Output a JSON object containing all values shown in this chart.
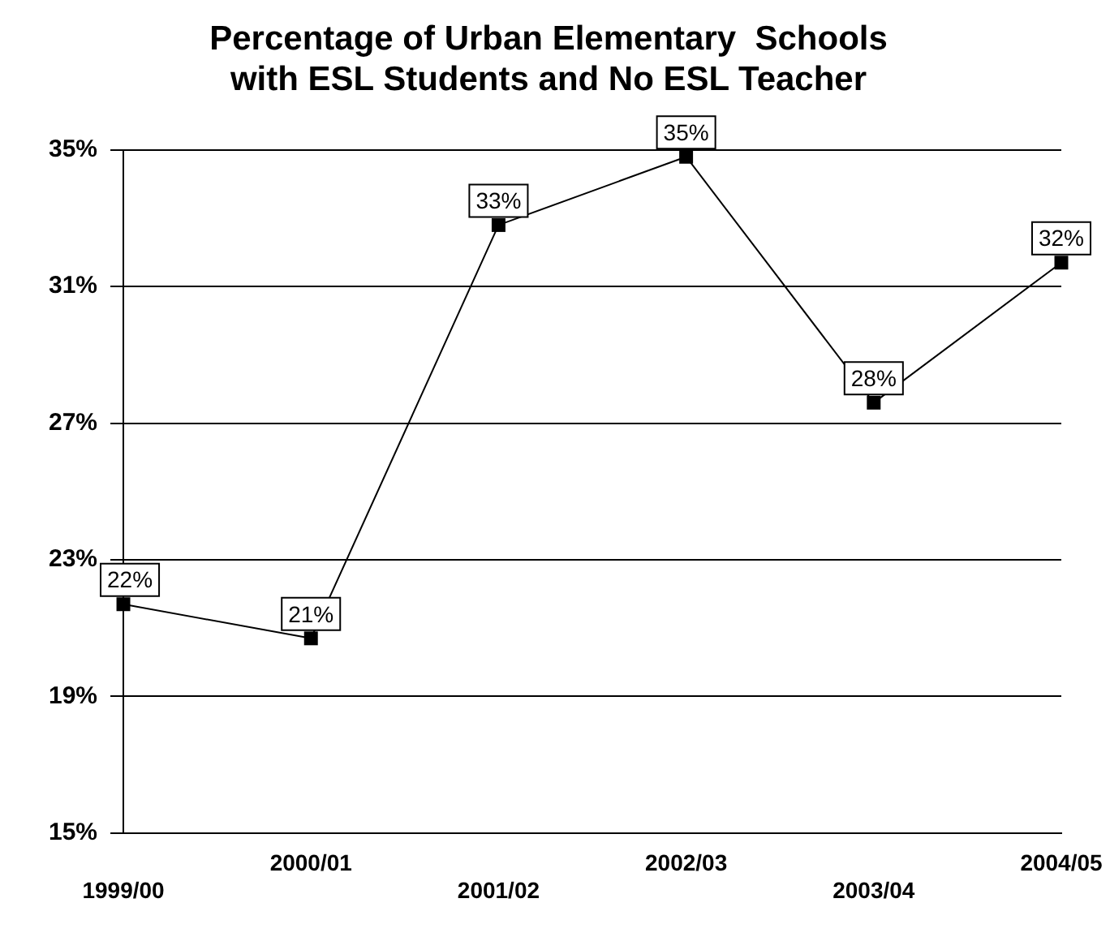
{
  "chart_data": {
    "type": "line",
    "title": "Percentage of Urban Elementary  Schools\nwith ESL Students and No ESL Teacher",
    "categories": [
      "1999/00",
      "2000/01",
      "2001/02",
      "2002/03",
      "2003/04",
      "2004/05"
    ],
    "series": [
      {
        "color": "#000000",
        "values": [
          21.7,
          20.7,
          32.8,
          34.8,
          27.6,
          31.7
        ],
        "value_labels": [
          "22%",
          "21%",
          "33%",
          "35%",
          "28%",
          "32%"
        ]
      }
    ],
    "ylim": [
      15,
      35
    ],
    "yticks": [
      {
        "value": 15,
        "label": "15%"
      },
      {
        "value": 19,
        "label": "19%"
      },
      {
        "value": 23,
        "label": "23%"
      },
      {
        "value": 27,
        "label": "27%"
      },
      {
        "value": 31,
        "label": "31%"
      },
      {
        "value": 35,
        "label": "35%"
      }
    ],
    "grid": "y",
    "marker": "square",
    "line_style": "solid",
    "legend": false
  }
}
